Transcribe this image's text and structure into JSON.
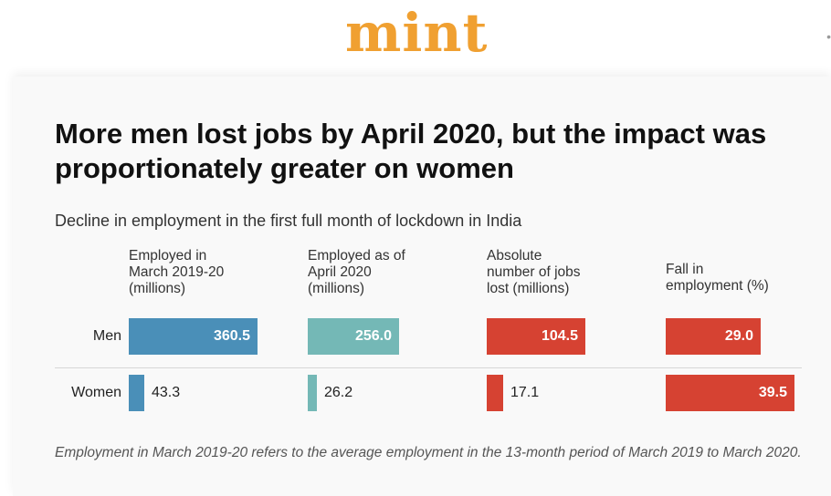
{
  "brand": {
    "logo": "mint"
  },
  "chart_data": {
    "type": "table",
    "title": "More men lost jobs by April 2020, but the impact was proportionately greater on women",
    "subtitle": "Decline in employment in the first full month of lockdown in India",
    "columns": [
      {
        "key": "employed_2019_20",
        "label": "Employed in\nMarch 2019-20\n(millions)",
        "color": "#4a8fb8",
        "max": 360.5
      },
      {
        "key": "employed_apr_2020",
        "label": "Employed as of\nApril 2020\n(millions)",
        "color": "#74b8b6",
        "max": 360.5
      },
      {
        "key": "jobs_lost",
        "label": "Absolute\nnumber of jobs\nlost (millions)",
        "color": "#d64232",
        "max": 136.2
      },
      {
        "key": "fall_pct",
        "label": "Fall in\nemployment (%)",
        "color": "#d64232",
        "max": 39.5
      }
    ],
    "rows": [
      {
        "label": "Men",
        "values": [
          360.5,
          256.0,
          104.5,
          29.0
        ],
        "display": [
          "360.5",
          "256.0",
          "104.5",
          "29.0"
        ]
      },
      {
        "label": "Women",
        "values": [
          43.3,
          26.2,
          17.1,
          39.5
        ],
        "display": [
          "43.3",
          "26.2",
          "17.1",
          "39.5"
        ]
      }
    ],
    "note": "Employment in March 2019-20 refers to the average employment in the 13-month period of March 2019 to March 2020."
  }
}
